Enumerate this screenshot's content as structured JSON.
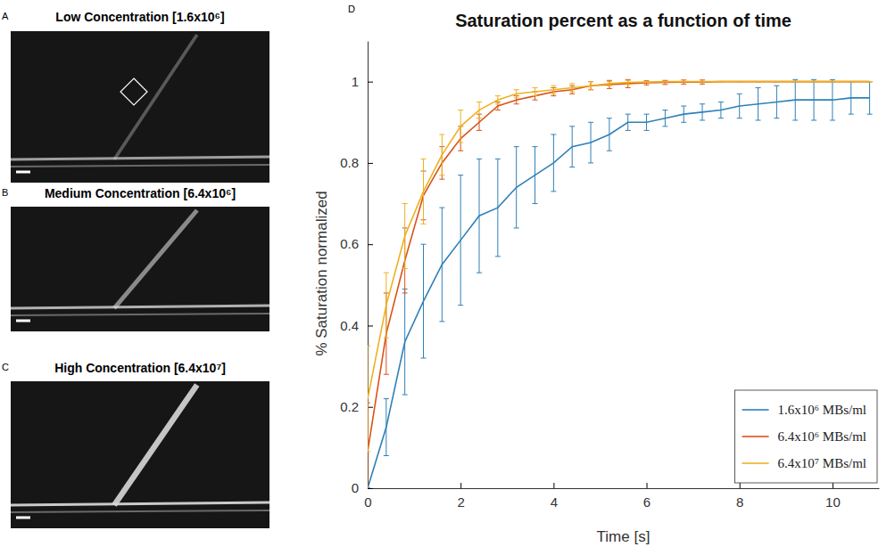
{
  "panels": [
    {
      "letter": "A",
      "title": "Low Concentration [1.6x10⁶]"
    },
    {
      "letter": "B",
      "title": "Medium Concentration [6.4x10⁶]"
    },
    {
      "letter": "C",
      "title": "High Concentration [6.4x10⁷]"
    },
    {
      "letter": "D"
    }
  ],
  "chart_data": {
    "type": "line",
    "title": "Saturation percent as a function of time",
    "x_label": "Time [s]",
    "y_label": "% Saturation normalized",
    "x": [
      0,
      0.4,
      0.8,
      1.2,
      1.6,
      2.0,
      2.4,
      2.8,
      3.2,
      3.6,
      4.0,
      4.4,
      4.8,
      5.2,
      5.6,
      6.0,
      6.4,
      6.8,
      7.2,
      7.6,
      8.0,
      8.4,
      8.8,
      9.2,
      9.6,
      10.0,
      10.4,
      10.8
    ],
    "xlim": [
      0,
      11
    ],
    "xticks": [
      0,
      2,
      4,
      6,
      8,
      10
    ],
    "ylim": [
      0,
      1.1
    ],
    "yticks": [
      0,
      0.2,
      0.4,
      0.6,
      0.8,
      1
    ],
    "grid": false,
    "legend": "southeast",
    "series": [
      {
        "name": "1.6x10⁶ MBs/ml",
        "color": "#2f80b8",
        "values": [
          0,
          0.15,
          0.36,
          0.46,
          0.55,
          0.61,
          0.67,
          0.69,
          0.74,
          0.77,
          0.8,
          0.84,
          0.85,
          0.87,
          0.9,
          0.9,
          0.91,
          0.92,
          0.925,
          0.93,
          0.94,
          0.945,
          0.95,
          0.955,
          0.955,
          0.955,
          0.96,
          0.96
        ],
        "errors": [
          0,
          0.07,
          0.13,
          0.14,
          0.14,
          0.16,
          0.14,
          0.12,
          0.1,
          0.07,
          0.07,
          0.05,
          0.05,
          0.04,
          0.02,
          0.02,
          0.02,
          0.02,
          0.02,
          0.02,
          0.03,
          0.04,
          0.04,
          0.05,
          0.05,
          0.05,
          0.04,
          0.04
        ]
      },
      {
        "name": "6.4x10⁶ MBs/ml",
        "color": "#d95319",
        "values": [
          0.09,
          0.38,
          0.56,
          0.72,
          0.8,
          0.86,
          0.9,
          0.94,
          0.955,
          0.965,
          0.975,
          0.98,
          0.99,
          0.993,
          0.995,
          0.997,
          0.998,
          0.999,
          0.999,
          1,
          1,
          1,
          1,
          1,
          1,
          1,
          1,
          1
        ],
        "errors": [
          0.12,
          0.1,
          0.08,
          0.06,
          0.04,
          0.03,
          0.02,
          0.01,
          0.01,
          0.01,
          0.01,
          0.01,
          0.01,
          0.01,
          0.01,
          0.005,
          0.005,
          0.005,
          0.005,
          0,
          0,
          0,
          0,
          0,
          0,
          0,
          0,
          0
        ]
      },
      {
        "name": "6.4x10⁷ MBs/ml",
        "color": "#edb120",
        "values": [
          0.22,
          0.45,
          0.62,
          0.73,
          0.82,
          0.89,
          0.93,
          0.955,
          0.97,
          0.975,
          0.98,
          0.985,
          0.99,
          0.995,
          0.998,
          0.999,
          1,
          1,
          1,
          1,
          1,
          1,
          1,
          1,
          1,
          1,
          1,
          1
        ],
        "errors": [
          0.13,
          0.08,
          0.08,
          0.08,
          0.05,
          0.04,
          0.02,
          0.01,
          0.01,
          0.01,
          0.01,
          0.01,
          0.01,
          0.005,
          0.005,
          0,
          0,
          0,
          0,
          0,
          0,
          0,
          0,
          0,
          0,
          0,
          0,
          0
        ]
      }
    ]
  }
}
